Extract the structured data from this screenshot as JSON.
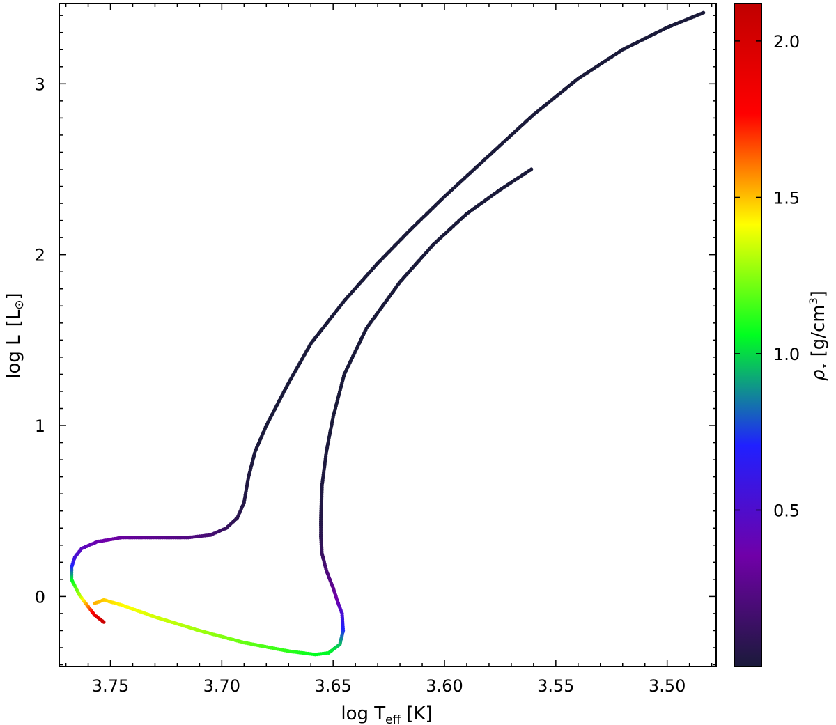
{
  "chart_data": {
    "type": "scatter",
    "title": "",
    "xlabel": {
      "main": "log T",
      "sub": "eff",
      "unit": "[K]"
    },
    "ylabel": {
      "main": "log L",
      "unit_open": "[L",
      "unit_sym": "⊙",
      "unit_close": "]"
    },
    "colorbar": {
      "label_symbol": "ρ",
      "label_sub": "⋆",
      "label_unit": "[g/cm",
      "label_unit_sup": "3",
      "label_unit_close": "]",
      "range": [
        0.0,
        2.12
      ],
      "ticks": [
        0.5,
        1.0,
        1.5,
        2.0
      ],
      "tick_labels": [
        "0.5",
        "1.0",
        "1.5",
        "2.0"
      ],
      "colormap": [
        "#1a1a3a",
        "#7000a8",
        "#2020ff",
        "#00ff20",
        "#ffff00",
        "#ff0000",
        "#c00000"
      ]
    },
    "xlim": [
      3.773,
      3.478
    ],
    "ylim": [
      -0.41,
      3.47
    ],
    "x_ticks": [
      3.75,
      3.7,
      3.65,
      3.6,
      3.55,
      3.5
    ],
    "x_tick_labels": [
      "3.75",
      "3.70",
      "3.65",
      "3.60",
      "3.55",
      "3.50"
    ],
    "y_ticks": [
      0,
      1,
      2,
      3
    ],
    "y_tick_labels": [
      "0",
      "1",
      "2",
      "3"
    ],
    "grid": false,
    "track": {
      "logTeff": [
        3.753,
        3.757,
        3.76,
        3.764,
        3.7675,
        3.7675,
        3.766,
        3.763,
        3.756,
        3.745,
        3.73,
        3.715,
        3.705,
        3.698,
        3.693,
        3.69,
        3.688,
        3.685,
        3.68,
        3.67,
        3.66,
        3.645,
        3.63,
        3.615,
        3.6,
        3.58,
        3.56,
        3.54,
        3.52,
        3.5,
        3.483,
        3.561,
        3.575,
        3.59,
        3.605,
        3.62,
        3.635,
        3.645,
        3.65,
        3.653,
        3.655,
        3.6555,
        3.6555,
        3.655,
        3.653,
        3.65,
        3.648,
        3.646,
        3.6455,
        3.647,
        3.652,
        3.658,
        3.67,
        3.69,
        3.71,
        3.73,
        3.745,
        3.753,
        3.757
      ],
      "logL": [
        -0.15,
        -0.11,
        -0.06,
        0.01,
        0.1,
        0.17,
        0.23,
        0.28,
        0.32,
        0.345,
        0.345,
        0.345,
        0.36,
        0.4,
        0.46,
        0.55,
        0.7,
        0.85,
        1.0,
        1.25,
        1.48,
        1.73,
        1.95,
        2.15,
        2.34,
        2.58,
        2.82,
        3.03,
        3.2,
        3.33,
        3.42,
        2.5,
        2.38,
        2.24,
        2.06,
        1.84,
        1.57,
        1.3,
        1.05,
        0.85,
        0.65,
        0.45,
        0.35,
        0.25,
        0.15,
        0.05,
        -0.03,
        -0.1,
        -0.2,
        -0.28,
        -0.33,
        -0.34,
        -0.32,
        -0.27,
        -0.2,
        -0.12,
        -0.05,
        -0.02,
        -0.04
      ],
      "rho": [
        2.08,
        1.9,
        1.62,
        1.3,
        1.05,
        0.75,
        0.55,
        0.45,
        0.38,
        0.32,
        0.27,
        0.23,
        0.18,
        0.12,
        0.07,
        0.04,
        0.02,
        0.01,
        0.0,
        0.0,
        0.0,
        0.0,
        0.0,
        0.0,
        0.0,
        0.0,
        0.0,
        0.0,
        0.0,
        0.0,
        0.0,
        0.0,
        0.0,
        0.0,
        0.0,
        0.0,
        0.0,
        0.0,
        0.0,
        0.01,
        0.02,
        0.04,
        0.07,
        0.12,
        0.2,
        0.28,
        0.38,
        0.52,
        0.72,
        0.95,
        1.05,
        1.06,
        1.12,
        1.2,
        1.28,
        1.35,
        1.42,
        1.48,
        1.52
      ]
    }
  }
}
